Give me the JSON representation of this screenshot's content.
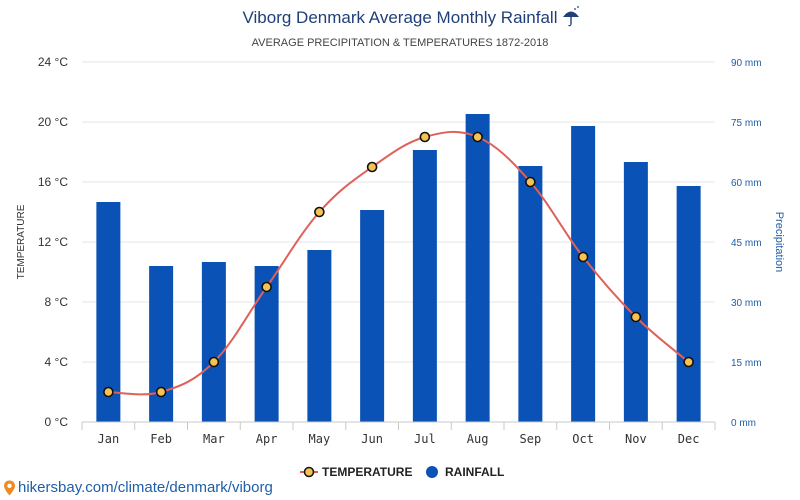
{
  "header": {
    "title": "Viborg Denmark Average Monthly Rainfall",
    "title_icon": "umbrella-rain-icon",
    "subtitle": "AVERAGE PRECIPITATION & TEMPERATURES 1872-2018"
  },
  "axes": {
    "left_label": "TEMPERATURE",
    "right_label": "Precipitation",
    "left_ticks": [
      "0 °C",
      "4 °C",
      "8 °C",
      "12 °C",
      "16 °C",
      "20 °C",
      "24 °C"
    ],
    "right_ticks": [
      "0 mm",
      "15 mm",
      "30 mm",
      "45 mm",
      "60 mm",
      "75 mm",
      "90 mm"
    ]
  },
  "legend": {
    "temperature_label": "TEMPERATURE",
    "rainfall_label": "RAINFALL"
  },
  "footer": {
    "source_text": "hikersbay.com/climate/denmark/viborg",
    "source_icon": "location-pin-icon"
  },
  "colors": {
    "bar": "#0a52b5",
    "line": "#e0605a",
    "marker_fill": "#f6c352",
    "title": "#1f3f78",
    "right_axis": "#1f5ea8",
    "grid": "#e6e6e6"
  },
  "chart_data": {
    "type": "bar",
    "title": "Viborg Denmark Average Monthly Rainfall",
    "subtitle": "AVERAGE PRECIPITATION & TEMPERATURES 1872-2018",
    "categories": [
      "Jan",
      "Feb",
      "Mar",
      "Apr",
      "May",
      "Jun",
      "Jul",
      "Aug",
      "Sep",
      "Oct",
      "Nov",
      "Dec"
    ],
    "series": [
      {
        "name": "RAINFALL",
        "type": "bar",
        "axis": "right",
        "values": [
          55,
          39,
          40,
          39,
          43,
          53,
          68,
          77,
          64,
          74,
          65,
          59
        ]
      },
      {
        "name": "TEMPERATURE",
        "type": "line",
        "axis": "left",
        "values": [
          2,
          2,
          4,
          9,
          14,
          17,
          19,
          19,
          16,
          11,
          7,
          4
        ]
      }
    ],
    "ylabel": "TEMPERATURE",
    "ylabel_right": "Precipitation",
    "ylim": [
      0,
      24
    ],
    "ylim_right": [
      0,
      90
    ],
    "grid": true,
    "legend_position": "bottom"
  }
}
